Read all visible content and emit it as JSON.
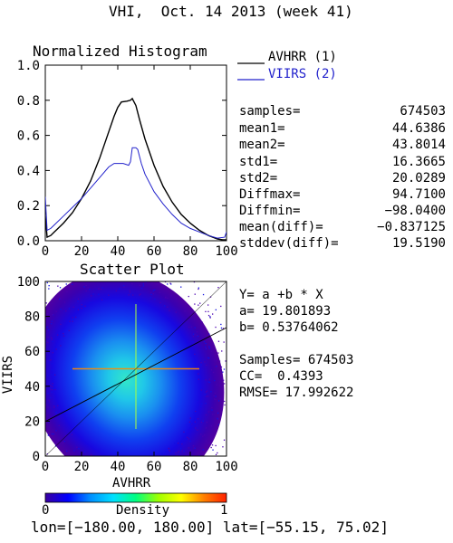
{
  "header": {
    "title": "VHI,  Oct. 14 2013 (week 41)"
  },
  "chart_data": [
    {
      "type": "line",
      "title": "Normalized Histogram",
      "xlabel": "",
      "ylabel": "",
      "xlim": [
        0,
        100
      ],
      "ylim": [
        0.0,
        1.0
      ],
      "x_ticks": [
        "0",
        "20",
        "40",
        "60",
        "80",
        "100"
      ],
      "y_ticks": [
        "0.0",
        "0.2",
        "0.4",
        "0.6",
        "0.8",
        "1.0"
      ],
      "series": [
        {
          "name": "AVHRR (1)",
          "color": "#000000",
          "points": [
            [
              0,
              0.14
            ],
            [
              1,
              0.02
            ],
            [
              3,
              0.03
            ],
            [
              5,
              0.05
            ],
            [
              10,
              0.1
            ],
            [
              15,
              0.16
            ],
            [
              20,
              0.24
            ],
            [
              25,
              0.34
            ],
            [
              30,
              0.47
            ],
            [
              35,
              0.62
            ],
            [
              38,
              0.71
            ],
            [
              40,
              0.76
            ],
            [
              42,
              0.79
            ],
            [
              45,
              0.795
            ],
            [
              47,
              0.8
            ],
            [
              48,
              0.81
            ],
            [
              50,
              0.77
            ],
            [
              52,
              0.69
            ],
            [
              55,
              0.58
            ],
            [
              60,
              0.43
            ],
            [
              65,
              0.31
            ],
            [
              70,
              0.22
            ],
            [
              75,
              0.15
            ],
            [
              80,
              0.1
            ],
            [
              85,
              0.06
            ],
            [
              90,
              0.03
            ],
            [
              95,
              0.01
            ],
            [
              98,
              0.005
            ],
            [
              100,
              0.005
            ]
          ]
        },
        {
          "name": "VIIRS (2)",
          "color": "#2222cc",
          "points": [
            [
              0,
              0.25
            ],
            [
              1,
              0.06
            ],
            [
              3,
              0.07
            ],
            [
              5,
              0.09
            ],
            [
              10,
              0.14
            ],
            [
              15,
              0.19
            ],
            [
              20,
              0.24
            ],
            [
              25,
              0.3
            ],
            [
              30,
              0.36
            ],
            [
              35,
              0.42
            ],
            [
              38,
              0.44
            ],
            [
              40,
              0.44
            ],
            [
              43,
              0.44
            ],
            [
              46,
              0.43
            ],
            [
              47,
              0.45
            ],
            [
              48,
              0.53
            ],
            [
              50,
              0.53
            ],
            [
              51,
              0.52
            ],
            [
              53,
              0.44
            ],
            [
              55,
              0.38
            ],
            [
              60,
              0.28
            ],
            [
              65,
              0.21
            ],
            [
              70,
              0.15
            ],
            [
              75,
              0.1
            ],
            [
              80,
              0.07
            ],
            [
              85,
              0.05
            ],
            [
              90,
              0.03
            ],
            [
              95,
              0.015
            ],
            [
              99,
              0.02
            ],
            [
              100,
              0.05
            ]
          ]
        }
      ]
    },
    {
      "type": "heatmap",
      "title": "Scatter Plot",
      "xlabel": "AVHRR",
      "ylabel": "VIIRS",
      "xlim": [
        0,
        100
      ],
      "ylim": [
        0,
        100
      ],
      "x_ticks": [
        "0",
        "20",
        "40",
        "60",
        "80",
        "100"
      ],
      "y_ticks": [
        "0",
        "20",
        "40",
        "60",
        "80",
        "100"
      ],
      "density_center": [
        44.6,
        43.8
      ],
      "std": [
        16.4,
        20.0
      ],
      "correlation": 0.4393,
      "fit_line": {
        "a": 19.801893,
        "b": 0.53764062,
        "x_range": [
          0,
          100
        ]
      },
      "colorbar": {
        "label": "Density",
        "min_label": "0",
        "max_label": "1",
        "colors": [
          "#3a00a0",
          "#0000ff",
          "#0090ff",
          "#00e0ff",
          "#00ff80",
          "#a0ff00",
          "#ffff00",
          "#ff8000",
          "#ff2000"
        ]
      }
    }
  ],
  "legend": [
    {
      "label": "AVHRR (1)",
      "color": "#000000"
    },
    {
      "label": "VIIRS (2)",
      "color": "#2222cc"
    }
  ],
  "stats": [
    {
      "key": "samples=",
      "value": "674503"
    },
    {
      "key": "mean1=",
      "value": "44.6386"
    },
    {
      "key": "mean2=",
      "value": "43.8014"
    },
    {
      "key": "std1=",
      "value": "16.3665"
    },
    {
      "key": "std2=",
      "value": "20.0289"
    },
    {
      "key": "Diffmax=",
      "value": "94.7100"
    },
    {
      "key": "Diffmin=",
      "value": "−98.0400"
    },
    {
      "key": "mean(diff)=",
      "value": "−0.837125"
    },
    {
      "key": "stddev(diff)=",
      "value": "19.5190"
    }
  ],
  "fit": {
    "equation": "Y= a +b * X",
    "a_line": "a= 19.801893",
    "b_line": "b= 0.53764062",
    "samples_line": "Samples= 674503",
    "cc_line": "CC=  0.4393",
    "rmse_line": "RMSE= 17.992622"
  },
  "footer": {
    "extent": "lon=[−180.00, 180.00] lat=[−55.15, 75.02]"
  }
}
